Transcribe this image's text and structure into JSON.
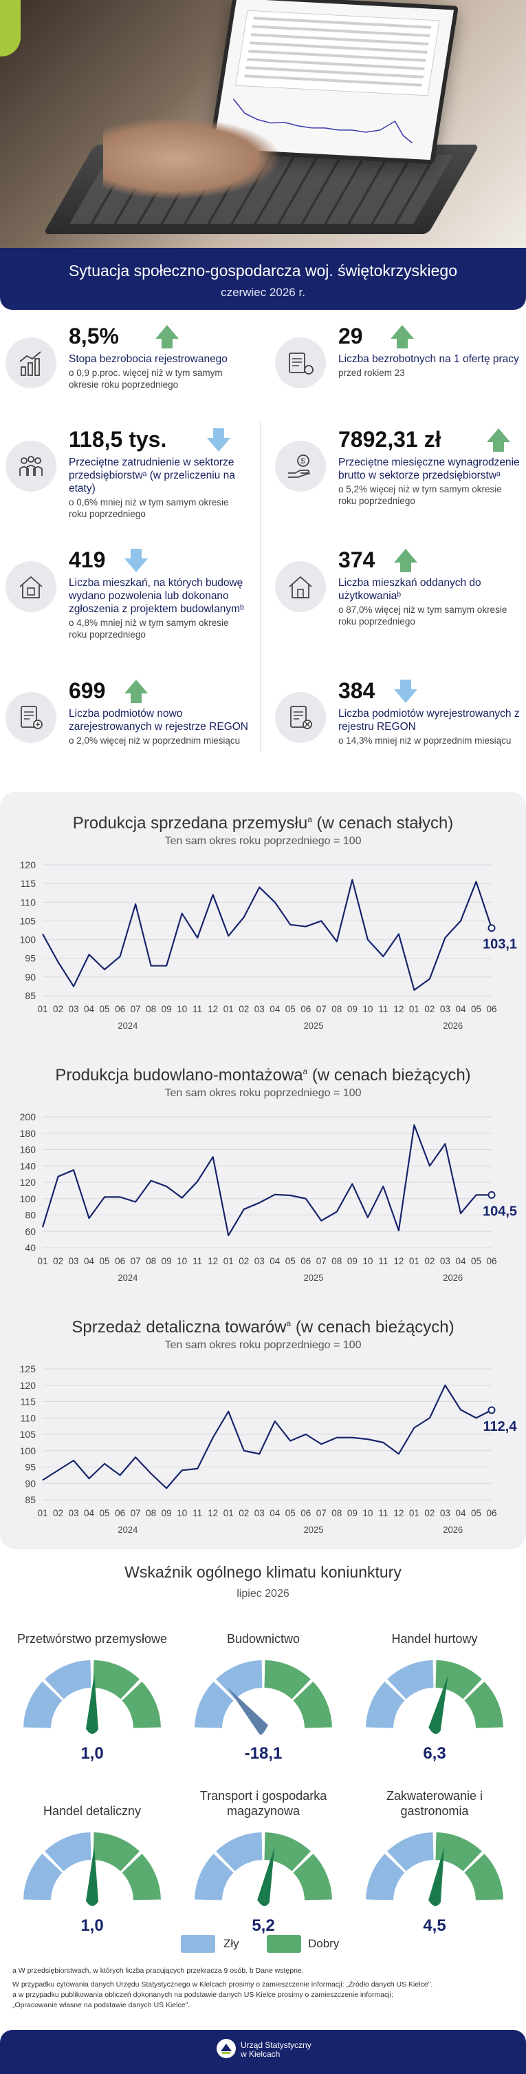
{
  "header": {
    "title": "Sytuacja społeczno-gospodarcza woj. świętokrzyskiego",
    "period": "czerwiec 2026 r."
  },
  "indicators": [
    {
      "value": "8,5%",
      "trend": "up",
      "label": "Stopa bezrobocia rejestrowanego",
      "sub": "o 0,9 p.proc. więcej niż w tym samym okresie roku poprzedniego",
      "icon": "chart-growth-icon"
    },
    {
      "value": "29",
      "trend": "up",
      "label": "Liczba bezrobotnych na 1 ofertę pracy",
      "sub": "przed rokiem 23",
      "icon": "job-offer-icon"
    },
    {
      "value": "118,5 tys.",
      "trend": "down",
      "label": "Przeciętne zatrudnienie w sektorze przedsiębiorstwᵃ (w przeliczeniu na etaty)",
      "sub": "o 0,6% mniej niż w tym samym okresie roku poprzedniego",
      "icon": "employees-icon"
    },
    {
      "value": "7892,31 zł",
      "trend": "up",
      "label": "Przeciętne miesięczne wynagrodzenie brutto w sektorze przedsiębiorstwᵃ",
      "sub": "o 5,2% więcej niż w tym samym okresie roku poprzedniego",
      "icon": "salary-hand-icon"
    },
    {
      "value": "419",
      "trend": "down",
      "label": "Liczba mieszkań, na których budowę wydano pozwolenia lub dokonano zgłoszenia z projektem budowlanymᵇ",
      "sub": "o 4,8% mniej niż w tym samym okresie roku poprzedniego",
      "icon": "house-permit-icon"
    },
    {
      "value": "374",
      "trend": "up",
      "label": "Liczba mieszkań oddanych do użytkowaniaᵇ",
      "sub": "o 87,0% więcej niż w tym samym okresie roku poprzedniego",
      "icon": "house-icon"
    },
    {
      "value": "699",
      "trend": "up",
      "label": "Liczba podmiotów nowo zarejestrowanych w rejestrze REGON",
      "sub": "o 2,0% więcej niż w poprzednim miesiącu",
      "icon": "register-add-icon"
    },
    {
      "value": "384",
      "trend": "down",
      "label": "Liczba podmiotów wyrejestrowanych z rejestru REGON",
      "sub": "o 14,3% mniej niż w poprzednim miesiącu",
      "icon": "register-remove-icon"
    }
  ],
  "colors": {
    "navy": "#17246b",
    "green": "#5aab70",
    "blue": "#8fb9e3",
    "arrow_up": "#6cb17a",
    "arrow_down": "#8fc3ea"
  },
  "chart_data": [
    {
      "type": "line",
      "title": "Produkcja sprzedana przemysłu",
      "title_note": "a",
      "title_suffix": "(w cenach stałych)",
      "subtitle": "Ten sam okres roku poprzedniego = 100",
      "x_labels": [
        "01",
        "02",
        "03",
        "04",
        "05",
        "06",
        "07",
        "08",
        "09",
        "10",
        "11",
        "12",
        "01",
        "02",
        "03",
        "04",
        "05",
        "06",
        "07",
        "08",
        "09",
        "10",
        "11",
        "12",
        "01",
        "02",
        "03",
        "04",
        "05",
        "06"
      ],
      "years": [
        "2024",
        "2025",
        "2026"
      ],
      "values": [
        101.5,
        94,
        87.5,
        96,
        92,
        95.5,
        109.5,
        93,
        93,
        107,
        100.5,
        112,
        101,
        106,
        114,
        110,
        104,
        103.5,
        105,
        99.5,
        116,
        100,
        95.5,
        101.5,
        86.5,
        89.5,
        100.5,
        105,
        115.5,
        103.1
      ],
      "last_label": "103,1",
      "ylim": [
        85,
        120
      ],
      "yticks": [
        85,
        90,
        95,
        100,
        105,
        110,
        115,
        120
      ]
    },
    {
      "type": "line",
      "title": "Produkcja budowlano-montażowa",
      "title_note": "a",
      "title_suffix": "(w cenach bieżących)",
      "subtitle": "Ten sam okres roku poprzedniego = 100",
      "x_labels": [
        "01",
        "02",
        "03",
        "04",
        "05",
        "06",
        "07",
        "08",
        "09",
        "10",
        "11",
        "12",
        "01",
        "02",
        "03",
        "04",
        "05",
        "06",
        "07",
        "08",
        "09",
        "10",
        "11",
        "12",
        "01",
        "02",
        "03",
        "04",
        "05",
        "06"
      ],
      "years": [
        "2024",
        "2025",
        "2026"
      ],
      "values": [
        65,
        127,
        135,
        76,
        102,
        102,
        96,
        122,
        115,
        101,
        121,
        151,
        55,
        87,
        95,
        105,
        104,
        100,
        73,
        84,
        118,
        77,
        115,
        61,
        190,
        140,
        167,
        82,
        104.5,
        104.5
      ],
      "last_label": "104,5",
      "ylim": [
        40,
        200
      ],
      "yticks": [
        40,
        60,
        80,
        100,
        120,
        140,
        160,
        180,
        200
      ]
    },
    {
      "type": "line",
      "title": "Sprzedaż detaliczna towarów",
      "title_note": "a",
      "title_suffix": "(w cenach bieżących)",
      "subtitle": "Ten sam okres roku poprzedniego = 100",
      "x_labels": [
        "01",
        "02",
        "03",
        "04",
        "05",
        "06",
        "07",
        "08",
        "09",
        "10",
        "11",
        "12",
        "01",
        "02",
        "03",
        "04",
        "05",
        "06",
        "07",
        "08",
        "09",
        "10",
        "11",
        "12",
        "01",
        "02",
        "03",
        "04",
        "05",
        "06"
      ],
      "years": [
        "2024",
        "2025",
        "2026"
      ],
      "values": [
        91,
        94,
        97,
        91.5,
        96,
        92.5,
        98,
        93,
        88.5,
        94,
        94.5,
        104,
        112,
        100,
        99,
        109,
        103,
        105,
        102,
        104,
        104,
        103.5,
        102.5,
        99,
        107,
        110,
        120,
        112.5,
        110,
        112.4
      ],
      "last_label": "112,4",
      "ylim": [
        85,
        125
      ],
      "yticks": [
        85,
        90,
        95,
        100,
        105,
        110,
        115,
        120,
        125
      ]
    }
  ],
  "climate": {
    "title": "Wskaźnik ogólnego klimatu koniunktury",
    "period": "lipiec 2026",
    "gauges": [
      {
        "name": "Przetwórstwo przemysłowe",
        "value": "1,0",
        "num": 1.0
      },
      {
        "name": "Budownictwo",
        "value": "-18,1",
        "num": -18.1
      },
      {
        "name": "Handel hurtowy",
        "value": "6,3",
        "num": 6.3
      },
      {
        "name": "Handel detaliczny",
        "value": "1,0",
        "num": 1.0
      },
      {
        "name": "Transport i gospodarka magazynowa",
        "value": "5,2",
        "num": 5.2
      },
      {
        "name": "Zakwaterowanie i gastronomia",
        "value": "4,5",
        "num": 4.5
      }
    ],
    "legend_bad": "Zły",
    "legend_good": "Dobry"
  },
  "notes": {
    "line1": "a W przedsiębiorstwach, w których liczba pracujących przekracza 9 osób. b Dane wstępne.",
    "line2": "W przypadku cytowania danych Urzędu Statystycznego w Kielcach prosimy o zamieszczenie informacji: „Źródło danych US Kielce\".",
    "line3": "a w przypadku publikowania obliczeń dokonanych na podstawie danych US Kielce prosimy o zamieszczenie informacji:",
    "line4": "„Opracowanie własne na podstawie danych US Kielce\"."
  },
  "footer": {
    "line1": "Urząd Statystyczny",
    "line2": "w Kielcach"
  }
}
